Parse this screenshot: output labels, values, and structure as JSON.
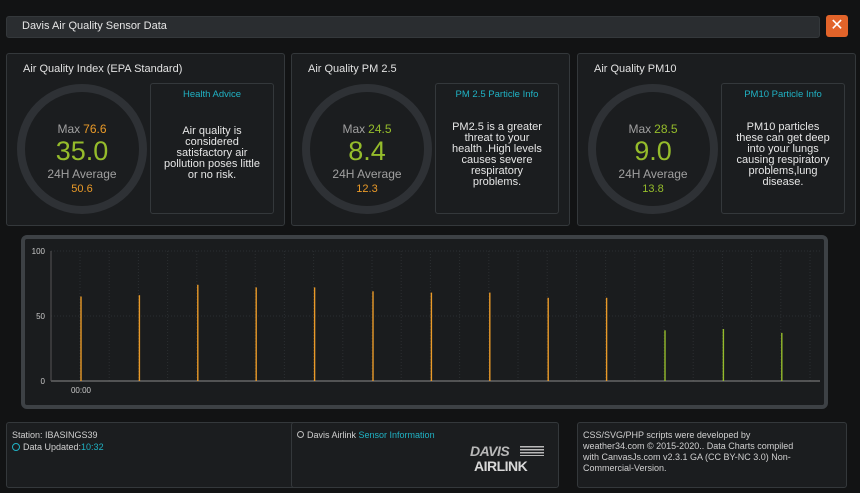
{
  "window": {
    "title": "Davis Air Quality Sensor Data",
    "close_label": "✕"
  },
  "colors": {
    "orange": "#ea9a28",
    "green": "#95bc2b",
    "cyan": "#20b2c4"
  },
  "panels": [
    {
      "title": "Air Quality Index (EPA Standard)",
      "max_label": "Max",
      "max_value": "76.6",
      "value": "35.0",
      "avg_label": "24H Average",
      "avg_value": "50.6",
      "info_title": "Health Advice",
      "info_lines": [
        "Air quality is",
        "considered",
        "satisfactory air",
        "pollution poses little",
        "or no risk."
      ]
    },
    {
      "title": "Air Quality PM 2.5",
      "max_label": "Max",
      "max_value": "24.5",
      "value": "8.4",
      "avg_label": "24H Average",
      "avg_value": "12.3",
      "info_title": "PM 2.5 Particle Info",
      "info_lines": [
        "PM2.5 is a greater",
        "threat to your",
        "health .High levels",
        "causes severe",
        "respiratory",
        "problems."
      ]
    },
    {
      "title": "Air Quality PM10",
      "max_label": "Max",
      "max_value": "28.5",
      "value": "9.0",
      "avg_label": "24H Average",
      "avg_value": "13.8",
      "info_title": "PM10 Particle Info",
      "info_lines": [
        "PM10 particles",
        "these can get deep",
        "into your lungs",
        "causing respiratory",
        "problems,lung",
        "disease."
      ]
    }
  ],
  "chart_data": {
    "type": "bar",
    "y_ticks": [
      0,
      50,
      100
    ],
    "ylim": [
      0,
      100
    ],
    "x_tick_label": "00:00",
    "values": [
      65,
      66,
      74,
      72,
      72,
      69,
      68,
      68,
      64,
      64,
      39,
      40,
      37
    ],
    "bar_colors": [
      "orange",
      "orange",
      "orange",
      "orange",
      "orange",
      "orange",
      "orange",
      "orange",
      "orange",
      "orange",
      "green",
      "green",
      "green"
    ]
  },
  "footer": {
    "station_label": "Station: IBASINGS39",
    "updated_label": "Data Updated:",
    "updated_time": "10:32",
    "airlink_label": "Davis Airlink",
    "sensor_info_link": "Sensor Information",
    "logo_top": "DAVIS",
    "logo_bottom": "AIRLINK",
    "credits_lines": [
      "CSS/SVG/PHP scripts were developed by",
      "weather34.com © 2015-2020.. Data Charts compiled",
      "with CanvasJs.com v2.3.1 GA (CC BY-NC 3.0) Non-",
      "Commercial-Version."
    ]
  }
}
